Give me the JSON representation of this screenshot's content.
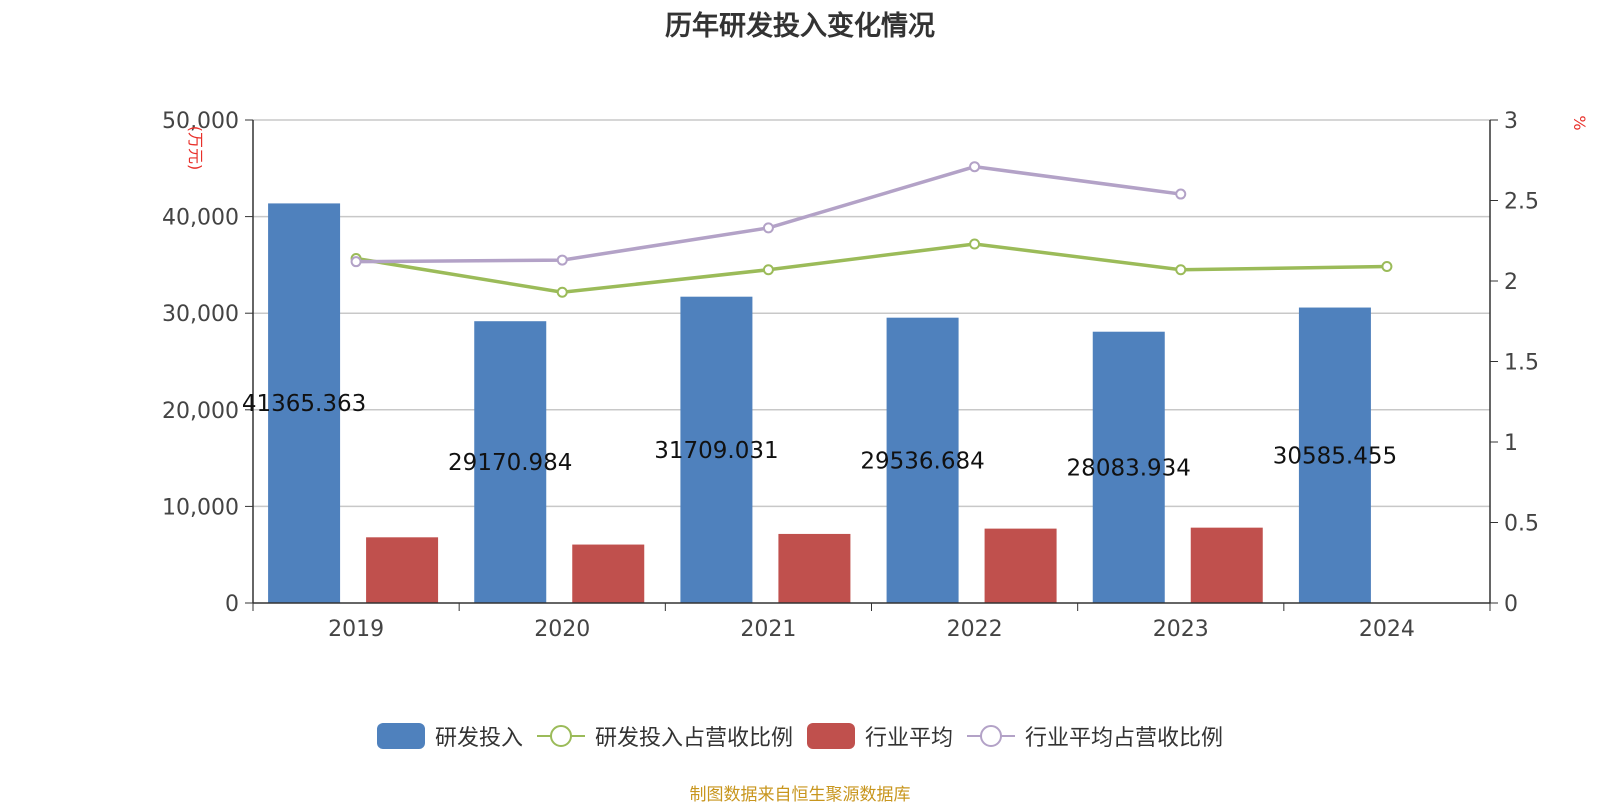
{
  "chart_data": {
    "type": "bar",
    "title": "历年研发投入变化情况",
    "categories": [
      "2019",
      "2020",
      "2021",
      "2022",
      "2023",
      "2024"
    ],
    "y_left": {
      "unit_label": "(万元)",
      "ylim": [
        0,
        50000
      ],
      "ticks": [
        "0",
        "10,000",
        "20,000",
        "30,000",
        "40,000",
        "50,000"
      ]
    },
    "y_right": {
      "unit_label": "%",
      "ylim": [
        0,
        3
      ],
      "ticks": [
        "0",
        "0.5",
        "1",
        "1.5",
        "2",
        "2.5",
        "3"
      ]
    },
    "series": [
      {
        "name": "研发投入",
        "type": "bar",
        "axis": "left",
        "color": "#4f81bd",
        "values": [
          41365.363,
          29170.984,
          31709.031,
          29536.684,
          28083.934,
          30585.455
        ],
        "labels": [
          "41365.363",
          "29170.984",
          "31709.031",
          "29536.684",
          "28083.934",
          "30585.455"
        ]
      },
      {
        "name": "研发投入占营收比例",
        "type": "line",
        "axis": "right",
        "color": "#9bbb59",
        "values": [
          2.14,
          1.93,
          2.07,
          2.23,
          2.07,
          2.09
        ]
      },
      {
        "name": "行业平均",
        "type": "bar",
        "axis": "left",
        "color": "#c0504d",
        "values": [
          6800,
          6050,
          7150,
          7700,
          7800,
          null
        ]
      },
      {
        "name": "行业平均占营收比例",
        "type": "line",
        "axis": "right",
        "color": "#b3a2c7",
        "values": [
          2.12,
          2.13,
          2.33,
          2.71,
          2.54,
          null
        ]
      }
    ],
    "grid": true,
    "legend_position": "bottom"
  },
  "source_text": "制图数据来自恒生聚源数据库"
}
